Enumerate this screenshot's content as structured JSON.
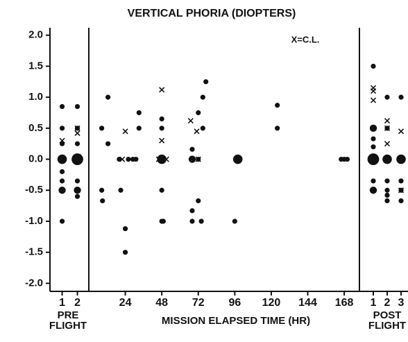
{
  "chart_data": {
    "type": "scatter",
    "title": "VERTICAL PHORIA (DIOPTERS)",
    "annotation": "X=C.L.",
    "ylim": [
      -2.13,
      2.12
    ],
    "yticks": [
      {
        "value": 2.0,
        "label": "2.0"
      },
      1.5,
      {
        "value": 1.0,
        "label": "1.0"
      },
      0.5,
      {
        "value": 0.0,
        "label": "0.0"
      },
      -0.5,
      {
        "value": -1.0,
        "label": "-1.0"
      },
      -1.5,
      {
        "value": -2.0,
        "label": "-2.0"
      }
    ],
    "panels": [
      {
        "label": [
          "PRE",
          "FLIGHT"
        ],
        "xlim": [
          0.2,
          2.75
        ],
        "xticks": [
          1,
          2
        ],
        "series": [
          {
            "marker": "dot",
            "x": [
              1,
              1,
              1,
              1,
              1,
              1,
              1,
              1,
              2,
              2,
              2,
              2,
              2,
              2,
              2
            ],
            "values": [
              0.85,
              0.5,
              0.25,
              0.0,
              -0.2,
              -0.35,
              -0.5,
              -1.0,
              0.85,
              0.5,
              0.25,
              0.0,
              -0.35,
              -0.5,
              -0.6
            ],
            "sizes": [
              1,
              1,
              1,
              3,
              1,
              1,
              2,
              1,
              1,
              1,
              1,
              4,
              1,
              2,
              1
            ]
          },
          {
            "marker": "x",
            "x": [
              1,
              2,
              2
            ],
            "values": [
              0.3,
              0.5,
              0.42
            ]
          }
        ]
      },
      {
        "label": [
          "MISSION ELAPSED TIME (HR)"
        ],
        "xlim": [
          0,
          178
        ],
        "xticks": [
          24,
          48,
          72,
          96,
          120,
          144,
          168
        ],
        "series": [
          {
            "marker": "dot",
            "x": [
              8.5,
              8.5,
              9,
              12.6,
              12.6,
              21,
              20,
              24,
              24,
              26,
              29,
              31,
              33,
              33,
              48,
              48,
              48,
              48,
              48,
              49,
              68,
              68,
              68,
              68,
              72,
              72,
              72,
              74,
              75,
              75,
              77,
              96,
              98,
              124,
              124,
              166,
              168,
              170
            ],
            "values": [
              0.5,
              -0.5,
              -0.67,
              1.0,
              0.25,
              -0.5,
              0.0,
              -1.12,
              -1.5,
              0.0,
              0.0,
              0.0,
              0.75,
              0.5,
              0.65,
              0.5,
              0.0,
              -0.5,
              -1.0,
              -1.0,
              0.16,
              0.0,
              -0.83,
              -1.0,
              0.0,
              0.75,
              -0.67,
              -1.0,
              1.0,
              0.5,
              1.25,
              -1.0,
              0.0,
              0.87,
              0.5,
              0.0,
              0.0,
              0.0
            ],
            "sizes": [
              1,
              1,
              1,
              1,
              1,
              1,
              1,
              1,
              1,
              1,
              1,
              1,
              1,
              1,
              1,
              1,
              3,
              1,
              1,
              1,
              1,
              2,
              1,
              1,
              1,
              1,
              1,
              1,
              1,
              1,
              1,
              1,
              3,
              1,
              1,
              1,
              1,
              1
            ]
          },
          {
            "marker": "x",
            "x": [
              24,
              22,
              48,
              48,
              46,
              51,
              67,
              71,
              72
            ],
            "values": [
              0.45,
              0.0,
              1.12,
              0.3,
              0.0,
              0.0,
              0.62,
              0.45,
              0.0
            ]
          }
        ]
      },
      {
        "label": [
          "POST",
          "FLIGHT"
        ],
        "xlim": [
          0,
          3.5
        ],
        "xticks": [
          1,
          2,
          3
        ],
        "series": [
          {
            "marker": "dot",
            "x": [
              1,
              1,
              1,
              1,
              1,
              1,
              1,
              2,
              2,
              2,
              2,
              2,
              2,
              2,
              3,
              3,
              3,
              3,
              3
            ],
            "values": [
              1.5,
              0.5,
              0.33,
              0.2,
              0.0,
              -0.35,
              -0.5,
              1.0,
              0.5,
              0.0,
              -0.35,
              -0.5,
              -0.58,
              -0.67,
              1.0,
              0.0,
              -0.35,
              -0.5,
              -0.67
            ],
            "sizes": [
              1,
              2,
              1,
              1,
              4,
              1,
              2,
              1,
              1,
              3,
              1,
              1,
              1,
              1,
              1,
              3,
              1,
              1,
              1
            ]
          },
          {
            "marker": "x",
            "x": [
              1,
              1,
              1,
              2,
              2,
              2,
              3,
              3
            ],
            "values": [
              1.15,
              1.1,
              0.95,
              0.62,
              0.5,
              0.25,
              0.45,
              -0.5
            ]
          }
        ]
      }
    ]
  }
}
